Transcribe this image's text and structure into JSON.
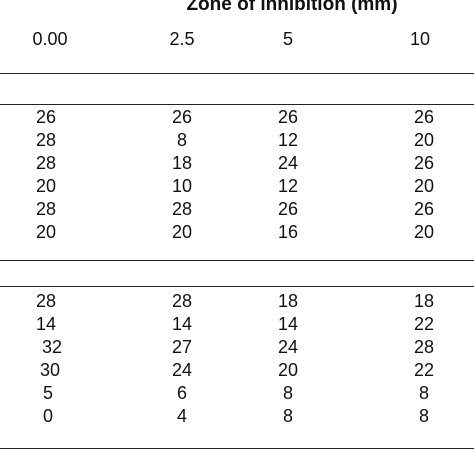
{
  "title": "Zone of inhibition (mm)",
  "columns": [
    "0.00",
    "2.5",
    "5",
    "10"
  ],
  "group1": [
    [
      "26",
      "26",
      "26",
      "26"
    ],
    [
      "28",
      "8",
      "12",
      "20"
    ],
    [
      "28",
      "18",
      "24",
      "26"
    ],
    [
      "20",
      "10",
      "12",
      "20"
    ],
    [
      "28",
      "28",
      "26",
      "26"
    ],
    [
      "20",
      "20",
      "16",
      "20"
    ]
  ],
  "group2": [
    [
      "28",
      "28",
      "18",
      "18"
    ],
    [
      "14",
      "14",
      "14",
      "22"
    ],
    [
      "32",
      "27",
      "24",
      "28"
    ],
    [
      "30",
      "24",
      "20",
      "22"
    ],
    [
      "5",
      "6",
      "8",
      "8"
    ],
    [
      "0",
      "4",
      "8",
      "8"
    ]
  ]
}
